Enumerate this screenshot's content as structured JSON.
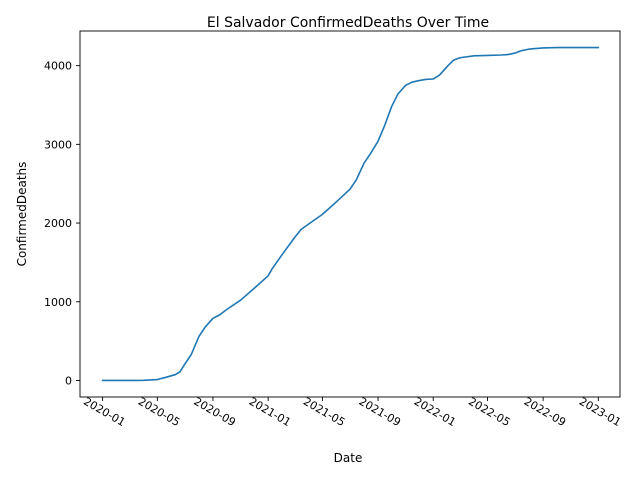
{
  "chart_data": {
    "type": "line",
    "title": "El Salvador  ConfirmedDeaths Over Time",
    "xlabel": "Date",
    "ylabel": "ConfirmedDeaths",
    "xlim": [
      "2019-11-12",
      "2023-02-18"
    ],
    "ylim": [
      -210,
      4440
    ],
    "grid": false,
    "line_color": "#1f77b4",
    "x_ticks": [
      "2020-01",
      "2020-05",
      "2020-09",
      "2021-01",
      "2021-05",
      "2021-09",
      "2022-01",
      "2022-05",
      "2022-09",
      "2023-01"
    ],
    "y_ticks": [
      "0",
      "1000",
      "2000",
      "3000",
      "4000"
    ],
    "series": [
      {
        "x": [
          "2020-01-01",
          "2020-03-15",
          "2020-04-01",
          "2020-05-01",
          "2020-05-20",
          "2020-06-10",
          "2020-06-20",
          "2020-07-01",
          "2020-07-15",
          "2020-08-01",
          "2020-08-15",
          "2020-09-01",
          "2020-09-15",
          "2020-10-01",
          "2020-11-01",
          "2020-12-01",
          "2021-01-01",
          "2021-01-10",
          "2021-02-01",
          "2021-03-01",
          "2021-03-15",
          "2021-04-01",
          "2021-05-01",
          "2021-06-01",
          "2021-07-01",
          "2021-07-15",
          "2021-08-01",
          "2021-08-15",
          "2021-09-01",
          "2021-09-15",
          "2021-10-01",
          "2021-10-15",
          "2021-11-01",
          "2021-11-15",
          "2021-12-01",
          "2021-12-15",
          "2022-01-01",
          "2022-01-15",
          "2022-02-01",
          "2022-02-15",
          "2022-03-01",
          "2022-04-01",
          "2022-05-01",
          "2022-06-01",
          "2022-06-15",
          "2022-07-01",
          "2022-07-15",
          "2022-08-01",
          "2022-09-01",
          "2022-10-01",
          "2022-11-01",
          "2022-12-01",
          "2023-01-01"
        ],
        "y": [
          0,
          0,
          2,
          12,
          40,
          75,
          110,
          210,
          330,
          560,
          680,
          790,
          830,
          900,
          1020,
          1170,
          1330,
          1420,
          1600,
          1820,
          1920,
          1990,
          2110,
          2270,
          2430,
          2550,
          2760,
          2880,
          3040,
          3230,
          3480,
          3640,
          3750,
          3790,
          3810,
          3825,
          3830,
          3880,
          3990,
          4070,
          4100,
          4125,
          4130,
          4135,
          4140,
          4160,
          4190,
          4210,
          4225,
          4230,
          4230,
          4230,
          4230
        ]
      }
    ]
  }
}
